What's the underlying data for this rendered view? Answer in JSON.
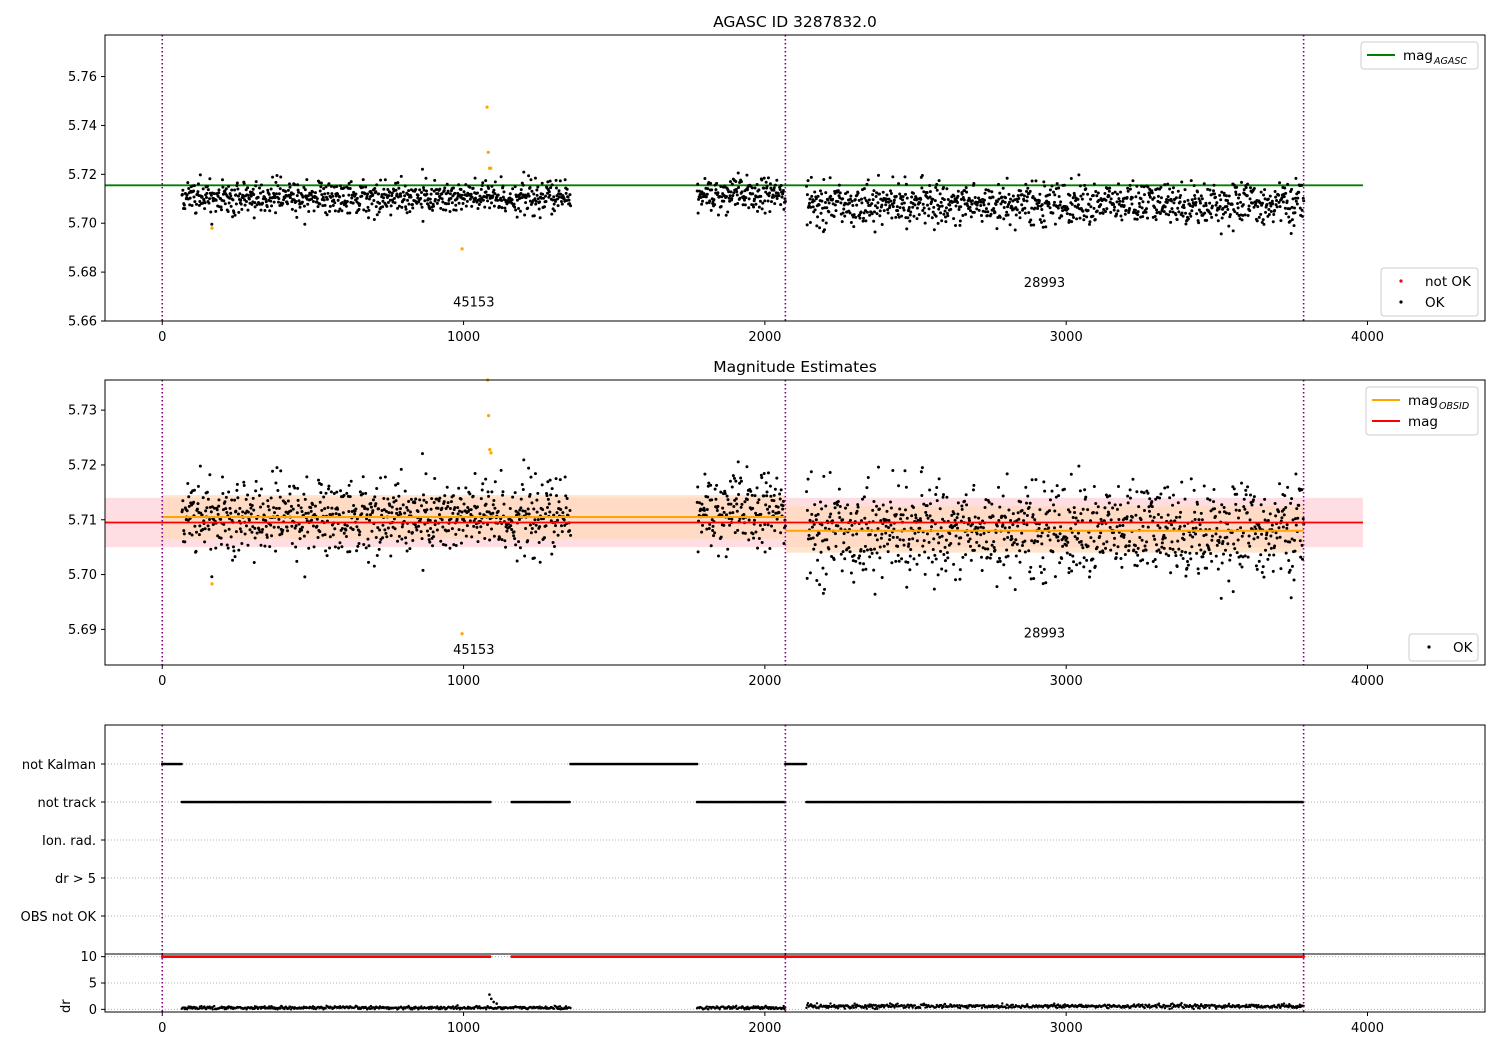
{
  "colors": {
    "ok_points": "#000000",
    "not_ok_points": "#ff0000",
    "outlier_points": "#ffa500",
    "mag_agasc_line": "#008000",
    "mag_obsid_line": "#ffa500",
    "mag_line": "#ff0000",
    "obsid_boundary": "#800080",
    "mag_band": "#ffb6c1",
    "obsid_band": "#ffdab9",
    "flag_points": "#000000",
    "dr_limit_points": "#ff0000"
  },
  "chart_data": [
    {
      "type": "scatter",
      "title": "AGASC ID 3287832.0",
      "xlabel": "",
      "ylabel": "",
      "xlim": [
        -190,
        4390
      ],
      "ylim": [
        5.66,
        5.777
      ],
      "xticks": [
        "0",
        "1000",
        "2000",
        "3000",
        "4000"
      ],
      "yticks": [
        "5.66",
        "5.68",
        "5.70",
        "5.72",
        "5.74",
        "5.76"
      ],
      "obsid_boundaries": [
        0,
        2068,
        3788
      ],
      "obsid_labels": [
        {
          "text": "45153",
          "x": 1034,
          "y": 5.666
        },
        {
          "text": "28993",
          "x": 2928,
          "y": 5.674
        }
      ],
      "reference_lines": [
        {
          "name": "mag",
          "subscript": "AGASC",
          "y": 5.7155,
          "x": [
            -190,
            3985
          ]
        }
      ],
      "segments": [
        {
          "x": [
            65,
            1355
          ],
          "mean": 5.7105,
          "sd": 0.0035
        },
        {
          "x": [
            1775,
            2068
          ],
          "mean": 5.7115,
          "sd": 0.0035
        },
        {
          "x": [
            2138,
            3788
          ],
          "mean": 5.708,
          "sd": 0.0042
        }
      ],
      "outliers": [
        {
          "x": 165,
          "y": 5.698
        },
        {
          "x": 995,
          "y": 5.6895
        },
        {
          "x": 1078,
          "y": 5.7475
        },
        {
          "x": 1082,
          "y": 5.729
        },
        {
          "x": 1086,
          "y": 5.7225
        },
        {
          "x": 1090,
          "y": 5.7225
        }
      ],
      "legends": [
        {
          "position": "upper-right",
          "entries": [
            {
              "label": "mag",
              "subscript": "AGASC",
              "kind": "line",
              "color": "#008000"
            }
          ]
        },
        {
          "position": "lower-right",
          "entries": [
            {
              "label": "not OK",
              "kind": "dot",
              "color": "#ff0000"
            },
            {
              "label": "OK",
              "kind": "dot",
              "color": "#000000"
            }
          ]
        }
      ],
      "grid": false
    },
    {
      "type": "scatter",
      "title": "Magnitude Estimates",
      "xlabel": "",
      "ylabel": "",
      "xlim": [
        -190,
        4390
      ],
      "ylim": [
        5.6835,
        5.7355
      ],
      "xticks": [
        "0",
        "1000",
        "2000",
        "3000",
        "4000"
      ],
      "yticks": [
        "5.69",
        "5.70",
        "5.71",
        "5.72",
        "5.73"
      ],
      "obsid_boundaries": [
        0,
        2068,
        3788
      ],
      "obsid_labels": [
        {
          "text": "45153",
          "x": 1034,
          "y": 5.6855
        },
        {
          "text": "28993",
          "x": 2928,
          "y": 5.6885
        }
      ],
      "mag": {
        "name": "mag",
        "y": 5.7095,
        "band": [
          5.705,
          5.714
        ],
        "x": [
          -190,
          3985
        ]
      },
      "mag_obsid": [
        {
          "name": "mag",
          "subscript": "OBSID",
          "x": [
            0,
            2068
          ],
          "y": 5.7105,
          "band": [
            5.7065,
            5.7145
          ]
        },
        {
          "name": "mag",
          "subscript": "OBSID",
          "x": [
            2068,
            3788
          ],
          "y": 5.708,
          "band": [
            5.704,
            5.7125
          ]
        }
      ],
      "segments": [
        {
          "x": [
            65,
            1355
          ],
          "mean": 5.7105,
          "sd": 0.0035
        },
        {
          "x": [
            1775,
            2068
          ],
          "mean": 5.7115,
          "sd": 0.0035
        },
        {
          "x": [
            2138,
            3788
          ],
          "mean": 5.708,
          "sd": 0.0042
        }
      ],
      "outliers": [
        {
          "x": 165,
          "y": 5.6983
        },
        {
          "x": 995,
          "y": 5.6892
        },
        {
          "x": 1080,
          "y": 5.7355
        },
        {
          "x": 1083,
          "y": 5.729
        },
        {
          "x": 1087,
          "y": 5.7228
        },
        {
          "x": 1091,
          "y": 5.7222
        }
      ],
      "legends": [
        {
          "position": "upper-right",
          "entries": [
            {
              "label": "mag",
              "subscript": "OBSID",
              "kind": "line",
              "color": "#ffa500"
            },
            {
              "label": "mag",
              "kind": "line",
              "color": "#ff0000"
            }
          ]
        },
        {
          "position": "lower-right",
          "entries": [
            {
              "label": "OK",
              "kind": "dot",
              "color": "#000000"
            }
          ]
        }
      ],
      "grid": false
    },
    {
      "type": "scatter",
      "title": "",
      "xlabel": "",
      "ylabel": "",
      "xlim": [
        -190,
        4390
      ],
      "categories": [
        "not Kalman",
        "not track",
        "Ion. rad.",
        "dr > 5",
        "OBS not OK"
      ],
      "obsid_boundaries": [
        0,
        2068,
        3788
      ],
      "flag_ranges": {
        "not Kalman": [
          [
            0,
            65
          ],
          [
            1355,
            1775
          ],
          [
            2068,
            2138
          ]
        ],
        "not track": [
          [
            65,
            1090
          ],
          [
            1160,
            1355
          ],
          [
            1775,
            2068
          ],
          [
            2138,
            3788
          ]
        ],
        "Ion. rad.": [],
        "dr > 5": [],
        "OBS not OK": []
      },
      "grid": "horizontal-dotted"
    },
    {
      "type": "scatter",
      "title": "",
      "xlabel": "",
      "ylabel": "dr",
      "xlim": [
        -190,
        4390
      ],
      "ylim": [
        -0.5,
        10.5
      ],
      "xticks": [
        "0",
        "1000",
        "2000",
        "3000",
        "4000"
      ],
      "yticks": [
        "0",
        "5",
        "10"
      ],
      "obsid_boundaries": [
        0,
        2068,
        3788
      ],
      "limit_points": {
        "y": 10,
        "ranges": [
          [
            0,
            1090
          ],
          [
            1160,
            3788
          ]
        ]
      },
      "segments": [
        {
          "x": [
            65,
            1355
          ],
          "mean": 0.3,
          "sd": 0.15
        },
        {
          "x": [
            1775,
            2068
          ],
          "mean": 0.3,
          "sd": 0.15
        },
        {
          "x": [
            2138,
            3788
          ],
          "mean": 0.6,
          "sd": 0.2
        }
      ],
      "spikes": [
        {
          "x": 1086,
          "y": 2.8
        },
        {
          "x": 1092,
          "y": 2.0
        },
        {
          "x": 1100,
          "y": 1.4
        },
        {
          "x": 1110,
          "y": 1.1
        }
      ],
      "grid": "horizontal-dotted"
    }
  ]
}
